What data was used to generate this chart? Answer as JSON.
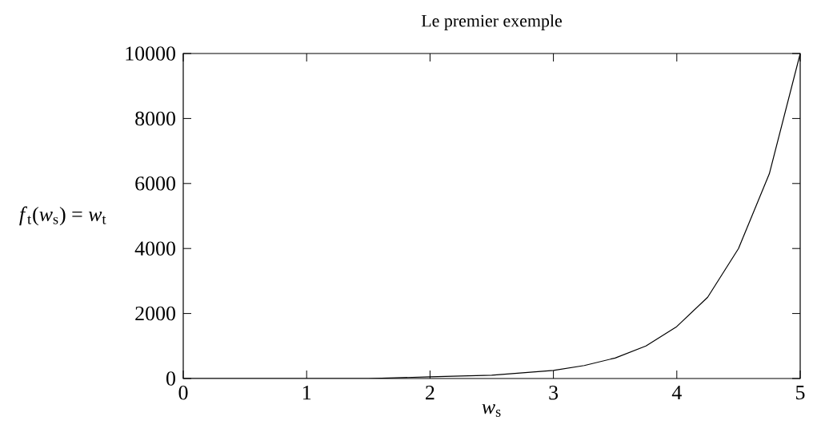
{
  "chart_data": {
    "type": "line",
    "title": "Le premier exemple",
    "xlabel": "*w*$_{s}$",
    "ylabel": "*f*$_{t}$(*w*$_{s}$) = *w*$_{t}$",
    "x": [
      0,
      0.5,
      1,
      1.5,
      2,
      2.5,
      3,
      3.25,
      3.5,
      3.75,
      4,
      4.25,
      4.5,
      4.75,
      5
    ],
    "series": [
      {
        "color": "#000000",
        "values": [
          0,
          0,
          0,
          0,
          50,
          100,
          250,
          400,
          630,
          1000,
          1600,
          2500,
          4000,
          6300,
          10000
        ]
      }
    ],
    "xlim": [
      0,
      5
    ],
    "ylim": [
      0,
      10000
    ],
    "xticks": [
      0,
      1,
      2,
      3,
      4,
      5
    ],
    "yticks": [
      0,
      2000,
      4000,
      6000,
      8000,
      10000
    ]
  }
}
